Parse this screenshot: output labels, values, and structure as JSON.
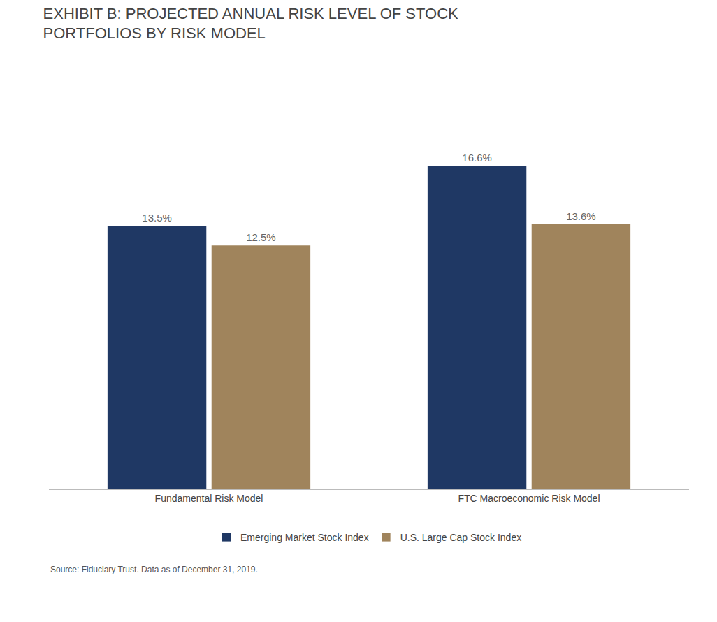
{
  "chart_data": {
    "type": "bar",
    "title": "EXHIBIT B: PROJECTED ANNUAL RISK LEVEL OF STOCK\nPORTFOLIOS BY RISK MODEL",
    "categories": [
      "Fundamental Risk Model",
      "FTC Macroeconomic Risk Model"
    ],
    "series": [
      {
        "name": "Emerging Market Stock Index",
        "color": "#1F3864",
        "values": [
          13.5,
          16.6
        ],
        "value_labels": [
          "13.5%",
          "16.6%"
        ]
      },
      {
        "name": "U.S. Large Cap Stock Index",
        "color": "#A0845C",
        "values": [
          12.5,
          13.6
        ],
        "value_labels": [
          "12.5%",
          "13.6%"
        ]
      }
    ],
    "ylim": [
      0,
      19
    ],
    "data_labels": true,
    "tick_labels": "x",
    "grid": false,
    "legend": "bottom",
    "annotations": [
      "Source: Fiduciary Trust. Data as of December 31, 2019."
    ]
  }
}
